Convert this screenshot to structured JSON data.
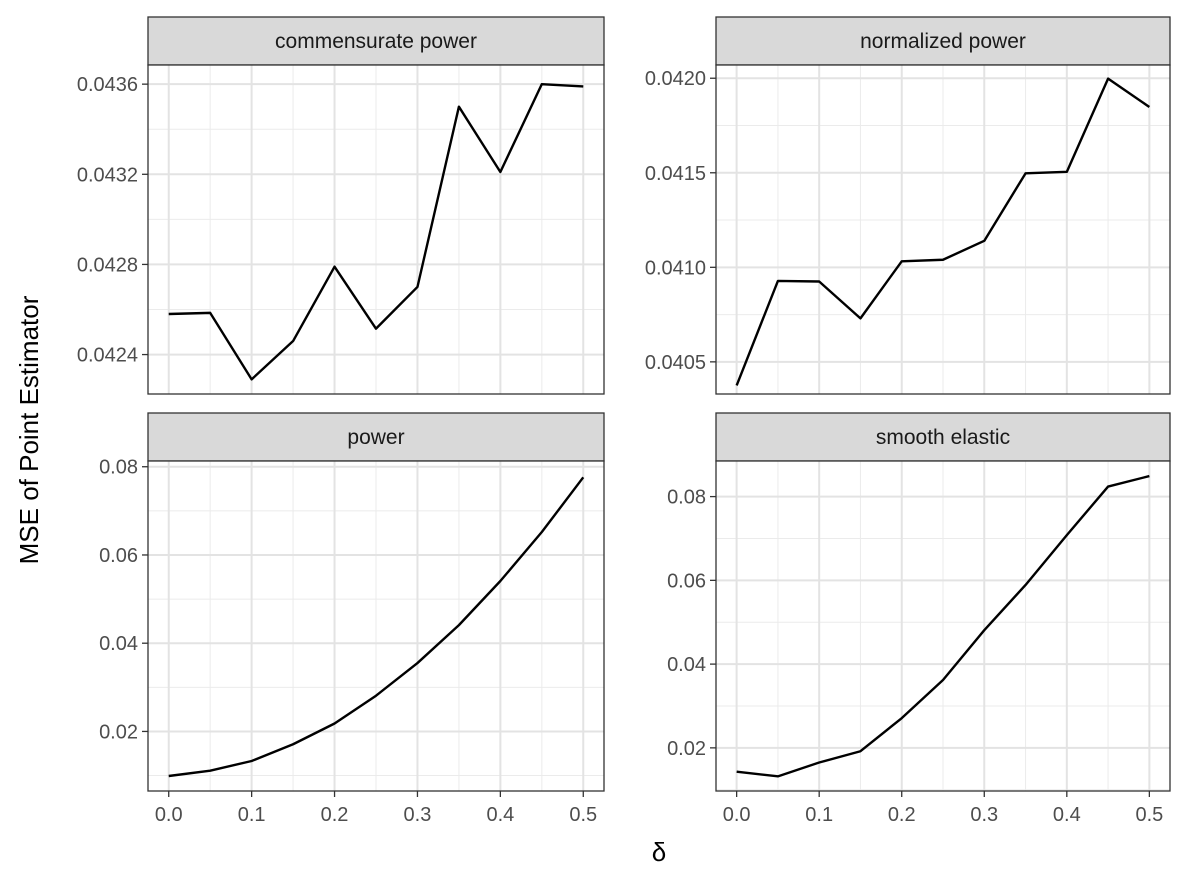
{
  "chart_data": {
    "type": "line",
    "layout": "facet-grid-2x2",
    "ylabel": "MSE of Point Estimator",
    "xlabel": "δ",
    "x": [
      0.0,
      0.05,
      0.1,
      0.15,
      0.2,
      0.25,
      0.3,
      0.35,
      0.4,
      0.45,
      0.5
    ],
    "xlim": [
      -0.025,
      0.525
    ],
    "x_ticks": [
      0.0,
      0.1,
      0.2,
      0.3,
      0.4,
      0.5
    ],
    "x_tick_labels": [
      "0.0",
      "0.1",
      "0.2",
      "0.3",
      "0.4",
      "0.5"
    ],
    "grid": true,
    "line_color": "#000000",
    "strip_fill": "#d9d9d9",
    "panels": [
      {
        "title": "commensurate power",
        "ylim": [
          0.042225,
          0.043685
        ],
        "y_ticks": [
          0.0424,
          0.0428,
          0.0432,
          0.0436
        ],
        "y_tick_labels": [
          "0.0424",
          "0.0428",
          "0.0432",
          "0.0436"
        ],
        "values": [
          0.04258,
          0.042585,
          0.04229,
          0.04246,
          0.04279,
          0.042515,
          0.0427,
          0.0435,
          0.04321,
          0.0436,
          0.04359
        ]
      },
      {
        "title": "normalized power",
        "ylim": [
          0.04033,
          0.04207
        ],
        "y_ticks": [
          0.0405,
          0.041,
          0.0415,
          0.042
        ],
        "y_tick_labels": [
          "0.0405",
          "0.0410",
          "0.0415",
          "0.0420"
        ],
        "values": [
          0.040375,
          0.040928,
          0.040925,
          0.04073,
          0.041032,
          0.04104,
          0.04114,
          0.041497,
          0.041505,
          0.041998,
          0.041848
        ]
      },
      {
        "title": "power",
        "ylim": [
          0.0065,
          0.0813
        ],
        "y_ticks": [
          0.02,
          0.04,
          0.06,
          0.08
        ],
        "y_tick_labels": [
          "0.02",
          "0.04",
          "0.06",
          "0.08"
        ],
        "values": [
          0.0099,
          0.0111,
          0.0133,
          0.0171,
          0.0218,
          0.0281,
          0.0355,
          0.0441,
          0.0541,
          0.0652,
          0.0776
        ]
      },
      {
        "title": "smooth elastic",
        "ylim": [
          0.0097,
          0.0885
        ],
        "y_ticks": [
          0.02,
          0.04,
          0.06,
          0.08
        ],
        "y_tick_labels": [
          "0.02",
          "0.04",
          "0.06",
          "0.08"
        ],
        "values": [
          0.0143,
          0.0132,
          0.0165,
          0.0192,
          0.0271,
          0.0362,
          0.0481,
          0.0589,
          0.0708,
          0.0824,
          0.0849
        ]
      }
    ]
  }
}
